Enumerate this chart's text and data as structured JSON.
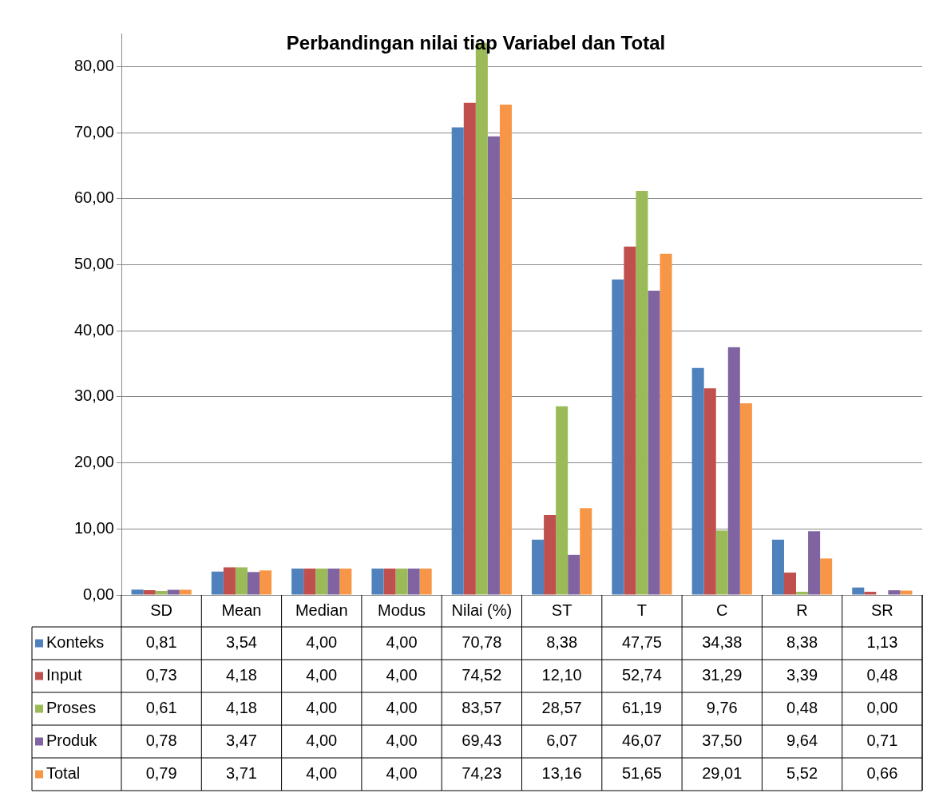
{
  "chart_data": {
    "type": "bar",
    "title": "Perbandingan nilai tiap Variabel dan Total",
    "categories": [
      "SD",
      "Mean",
      "Median",
      "Modus",
      "Nilai (%)",
      "ST",
      "T",
      "C",
      "R",
      "SR"
    ],
    "series": [
      {
        "name": "Konteks",
        "color": "#4f81bd",
        "values": [
          0.81,
          3.54,
          4.0,
          4.0,
          70.78,
          8.38,
          47.75,
          34.38,
          8.38,
          1.13
        ],
        "value_labels": [
          "0,81",
          "3,54",
          "4,00",
          "4,00",
          "70,78",
          "8,38",
          "47,75",
          "34,38",
          "8,38",
          "1,13"
        ]
      },
      {
        "name": "Input",
        "color": "#c0504d",
        "values": [
          0.73,
          4.18,
          4.0,
          4.0,
          74.52,
          12.1,
          52.74,
          31.29,
          3.39,
          0.48
        ],
        "value_labels": [
          "0,73",
          "4,18",
          "4,00",
          "4,00",
          "74,52",
          "12,10",
          "52,74",
          "31,29",
          "3,39",
          "0,48"
        ]
      },
      {
        "name": "Proses",
        "color": "#9bbb59",
        "values": [
          0.61,
          4.18,
          4.0,
          4.0,
          83.57,
          28.57,
          61.19,
          9.76,
          0.48,
          0.0
        ],
        "value_labels": [
          "0,61",
          "4,18",
          "4,00",
          "4,00",
          "83,57",
          "28,57",
          "61,19",
          "9,76",
          "0,48",
          "0,00"
        ]
      },
      {
        "name": "Produk",
        "color": "#8064a2",
        "values": [
          0.78,
          3.47,
          4.0,
          4.0,
          69.43,
          6.07,
          46.07,
          37.5,
          9.64,
          0.71
        ],
        "value_labels": [
          "0,78",
          "3,47",
          "4,00",
          "4,00",
          "69,43",
          "6,07",
          "46,07",
          "37,50",
          "9,64",
          "0,71"
        ]
      },
      {
        "name": "Total",
        "color": "#f79646",
        "values": [
          0.79,
          3.71,
          4.0,
          4.0,
          74.23,
          13.16,
          51.65,
          29.01,
          5.52,
          0.66
        ],
        "value_labels": [
          "0,79",
          "3,71",
          "4,00",
          "4,00",
          "74,23",
          "13,16",
          "51,65",
          "29,01",
          "5,52",
          "0,66"
        ]
      }
    ],
    "ylim": [
      0,
      85
    ],
    "yticks": [
      {
        "value": 0,
        "label": "0,00"
      },
      {
        "value": 10,
        "label": "10,00"
      },
      {
        "value": 20,
        "label": "20,00"
      },
      {
        "value": 30,
        "label": "30,00"
      },
      {
        "value": 40,
        "label": "40,00"
      },
      {
        "value": 50,
        "label": "50,00"
      },
      {
        "value": 60,
        "label": "60,00"
      },
      {
        "value": 70,
        "label": "70,00"
      },
      {
        "value": 80,
        "label": "80,00"
      }
    ],
    "grid": "y",
    "legend": "bottom left"
  }
}
